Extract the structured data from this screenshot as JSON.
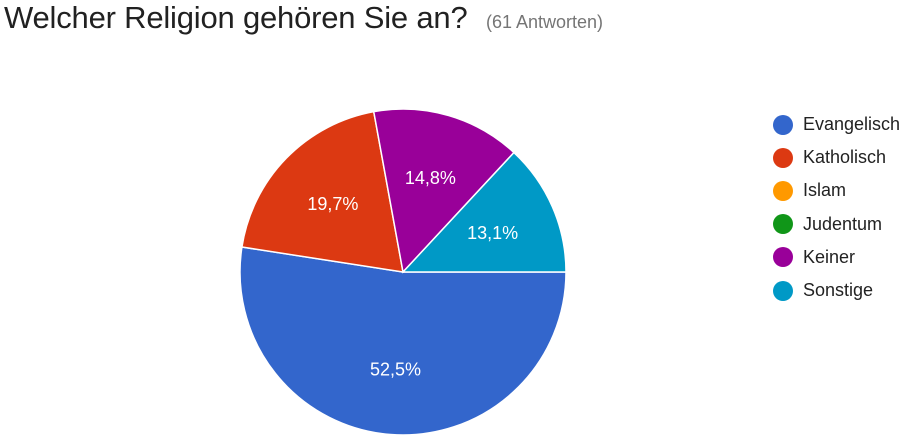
{
  "header": {
    "title": "Welcher Religion gehören Sie an?",
    "responses": "(61 Antworten)"
  },
  "chart_data": {
    "type": "pie",
    "title": "Welcher Religion gehören Sie an?",
    "categories": [
      "Evangelisch",
      "Katholisch",
      "Islam",
      "Judentum",
      "Keiner",
      "Sonstige"
    ],
    "values": [
      52.5,
      19.7,
      0,
      0,
      14.8,
      13.1
    ],
    "data_labels": [
      "52,5%",
      "19,7%",
      "",
      "",
      "14,8%",
      "13,1%"
    ],
    "colors": [
      "#3366cc",
      "#dc3912",
      "#ff9900",
      "#109618",
      "#990099",
      "#0099c6"
    ],
    "legend_position": "right",
    "start": "3 o'clock",
    "direction": "clockwise"
  }
}
